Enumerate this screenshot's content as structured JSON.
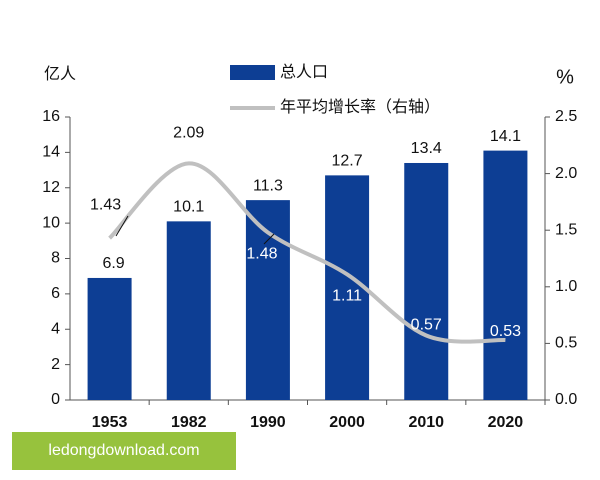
{
  "chart_data": {
    "type": "bar",
    "categories": [
      "1953",
      "1982",
      "1990",
      "2000",
      "2010",
      "2020"
    ],
    "y_label": "亿人",
    "y2_label": "%",
    "series": [
      {
        "name": "总人口",
        "type": "bar",
        "color": "#0d3e94",
        "values": [
          6.9,
          10.1,
          11.3,
          12.7,
          13.4,
          14.1
        ]
      },
      {
        "name": "年平均增长率（右轴）",
        "type": "line",
        "axis": "y2",
        "color": "#c0c0c0",
        "values": [
          1.43,
          2.09,
          1.48,
          1.11,
          0.57,
          0.53
        ]
      }
    ],
    "ylim": [
      0,
      16
    ],
    "yticks": [
      0,
      2,
      4,
      6,
      8,
      10,
      12,
      14,
      16
    ],
    "y2lim": [
      0,
      2.5
    ],
    "y2ticks": [
      {
        "value": 0,
        "label": "0.0"
      },
      0.5,
      {
        "value": 1,
        "label": "1.0"
      },
      1.5,
      {
        "value": 2,
        "label": "2.0"
      },
      2.5
    ],
    "grid": false
  },
  "watermark": "ledongdownload.com"
}
